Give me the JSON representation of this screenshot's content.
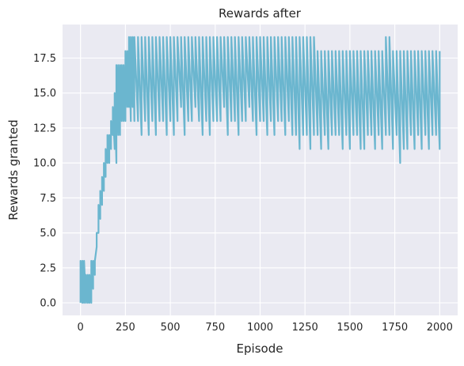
{
  "chart_data": {
    "type": "line",
    "title": "Rewards after",
    "xlabel": "Episode",
    "ylabel": "Rewards granted",
    "xlim": [
      -100,
      2100
    ],
    "ylim": [
      -0.9,
      19.9
    ],
    "xticks": [
      0,
      250,
      500,
      750,
      1000,
      1250,
      1500,
      1750,
      2000
    ],
    "xtick_labels": [
      "0",
      "250",
      "500",
      "750",
      "1000",
      "1250",
      "1500",
      "1750",
      "2000"
    ],
    "yticks": [
      0.0,
      2.5,
      5.0,
      7.5,
      10.0,
      12.5,
      15.0,
      17.5
    ],
    "ytick_labels": [
      "0.0",
      "2.5",
      "5.0",
      "7.5",
      "10.0",
      "12.5",
      "15.0",
      "17.5"
    ],
    "grid": true,
    "series": [
      {
        "color": "#6bb6cf",
        "x": [
          0,
          10,
          20,
          30,
          40,
          50,
          60,
          70,
          80,
          90,
          100,
          110,
          120,
          130,
          140,
          150,
          160,
          170,
          180,
          190,
          200,
          210,
          220,
          230,
          240,
          250,
          260,
          270,
          280,
          290,
          300,
          320,
          340,
          360,
          380,
          400,
          420,
          440,
          460,
          480,
          500,
          520,
          540,
          560,
          580,
          600,
          620,
          640,
          660,
          680,
          700,
          720,
          740,
          760,
          780,
          800,
          820,
          840,
          860,
          880,
          900,
          920,
          940,
          960,
          980,
          1000,
          1020,
          1040,
          1060,
          1080,
          1100,
          1120,
          1140,
          1160,
          1180,
          1200,
          1220,
          1240,
          1260,
          1280,
          1300,
          1320,
          1340,
          1360,
          1380,
          1400,
          1420,
          1440,
          1460,
          1480,
          1500,
          1520,
          1540,
          1560,
          1580,
          1600,
          1620,
          1640,
          1660,
          1680,
          1700,
          1720,
          1740,
          1760,
          1780,
          1800,
          1820,
          1840,
          1860,
          1880,
          1900,
          1920,
          1940,
          1960,
          1980,
          2000
        ],
        "y_low": [
          0,
          0,
          0,
          0,
          0,
          0,
          0,
          1,
          2,
          4,
          5,
          6,
          7,
          8,
          9,
          10,
          10,
          11,
          12,
          11,
          10,
          12,
          12,
          13,
          13,
          13,
          14,
          14,
          13,
          14,
          13,
          13,
          12,
          13,
          12,
          13,
          12,
          13,
          13,
          12,
          13,
          12,
          13,
          14,
          12,
          13,
          13,
          14,
          13,
          12,
          13,
          12,
          13,
          13,
          13,
          14,
          12,
          13,
          13,
          12,
          13,
          13,
          14,
          13,
          12,
          13,
          13,
          12,
          13,
          12,
          13,
          13,
          12,
          13,
          12,
          12,
          11,
          12,
          12,
          11,
          12,
          12,
          11,
          12,
          11,
          12,
          12,
          12,
          11,
          12,
          11,
          12,
          12,
          11,
          11,
          12,
          12,
          11,
          12,
          11,
          12,
          12,
          11,
          12,
          10,
          11,
          11,
          12,
          11,
          12,
          11,
          12,
          11,
          12,
          12,
          11
        ],
        "y_high": [
          3,
          3,
          3,
          2,
          2,
          2,
          3,
          3,
          3,
          5,
          7,
          8,
          9,
          10,
          11,
          12,
          12,
          13,
          14,
          15,
          17,
          17,
          17,
          17,
          17,
          18,
          18,
          19,
          19,
          19,
          19,
          19,
          19,
          19,
          19,
          19,
          19,
          19,
          19,
          19,
          19,
          19,
          19,
          19,
          19,
          19,
          19,
          19,
          19,
          19,
          19,
          19,
          19,
          19,
          19,
          19,
          19,
          19,
          19,
          19,
          19,
          19,
          19,
          19,
          19,
          19,
          19,
          19,
          19,
          19,
          19,
          19,
          19,
          19,
          19,
          19,
          19,
          19,
          19,
          19,
          19,
          18,
          18,
          18,
          18,
          18,
          18,
          18,
          18,
          18,
          18,
          18,
          18,
          18,
          18,
          18,
          18,
          18,
          18,
          18,
          19,
          19,
          18,
          18,
          18,
          18,
          18,
          18,
          18,
          18,
          18,
          18,
          18,
          18,
          18,
          18
        ]
      }
    ]
  }
}
